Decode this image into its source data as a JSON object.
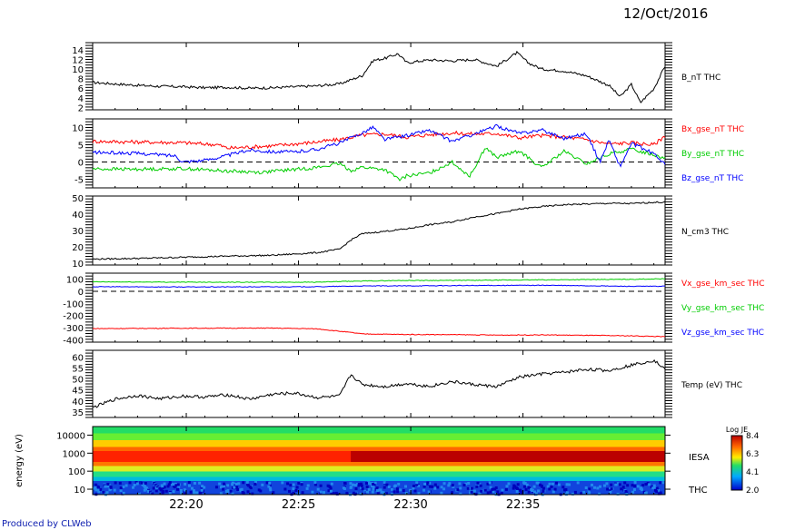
{
  "header": {
    "date": "12/Oct/2016"
  },
  "footer": {
    "produced_by": "Produced by CLWeb"
  },
  "chart_data": [
    {
      "type": "line",
      "panel": "B_nT",
      "label": "B_nT THC",
      "yticks": [
        2,
        4,
        6,
        8,
        10,
        12,
        14
      ],
      "ylim": [
        1.5,
        15.5
      ],
      "xlim": [
        "22:15:50",
        "22:35:45"
      ],
      "series": [
        {
          "name": "B_nT THC",
          "color": "#000000",
          "points": [
            [
              0,
              7.2
            ],
            [
              1,
              6.9
            ],
            [
              2,
              6.6
            ],
            [
              3,
              6.4
            ],
            [
              4,
              6.3
            ],
            [
              5,
              6.1
            ],
            [
              6,
              6.2
            ],
            [
              7,
              6.0
            ],
            [
              8,
              6.1
            ],
            [
              9,
              6.3
            ],
            [
              10,
              6.5
            ],
            [
              11,
              6.9
            ],
            [
              12,
              8.6
            ],
            [
              12.5,
              11.8
            ],
            [
              13,
              12.2
            ],
            [
              13.6,
              13.2
            ],
            [
              14,
              11.3
            ],
            [
              15,
              11.9
            ],
            [
              16,
              11.7
            ],
            [
              17,
              12.0
            ],
            [
              18,
              10.6
            ],
            [
              18.9,
              13.4
            ],
            [
              19.4,
              11.3
            ],
            [
              20,
              10.0
            ],
            [
              21,
              9.6
            ],
            [
              22,
              8.6
            ],
            [
              23,
              6.6
            ],
            [
              23.5,
              4.2
            ],
            [
              24,
              6.8
            ],
            [
              24.4,
              3.0
            ],
            [
              25,
              5.9
            ],
            [
              25.5,
              10.6
            ]
          ]
        }
      ]
    },
    {
      "type": "line",
      "panel": "B_gse_nT",
      "yticks": [
        -5,
        0,
        5,
        10
      ],
      "ylim": [
        -7.5,
        12.5
      ],
      "zero_line": true,
      "series": [
        {
          "name": "Bx_gse_nT THC",
          "color": "#ff0000",
          "points": [
            [
              0,
              6.0
            ],
            [
              2,
              5.8
            ],
            [
              4,
              5.6
            ],
            [
              5.6,
              5.0
            ],
            [
              6,
              4.0
            ],
            [
              8,
              4.7
            ],
            [
              9.5,
              5.5
            ],
            [
              11,
              6.5
            ],
            [
              12,
              7.8
            ],
            [
              13,
              8.1
            ],
            [
              14,
              7.2
            ],
            [
              15,
              7.9
            ],
            [
              16,
              8.4
            ],
            [
              17,
              8.1
            ],
            [
              18,
              8.3
            ],
            [
              19,
              7.0
            ],
            [
              20,
              7.7
            ],
            [
              21,
              7.2
            ],
            [
              22,
              6.5
            ],
            [
              23,
              5.2
            ],
            [
              24,
              5.6
            ],
            [
              25,
              5.0
            ],
            [
              25.5,
              7.6
            ]
          ]
        },
        {
          "name": "By_gse_nT THC",
          "color": "#00cc00",
          "points": [
            [
              0,
              -2.0
            ],
            [
              2,
              -2.1
            ],
            [
              4,
              -1.9
            ],
            [
              6,
              -2.6
            ],
            [
              7.5,
              -3.0
            ],
            [
              8,
              -2.7
            ],
            [
              10,
              -1.6
            ],
            [
              11,
              -0.5
            ],
            [
              11.5,
              -2.5
            ],
            [
              12,
              -1.5
            ],
            [
              13,
              -2.2
            ],
            [
              13.7,
              -5.2
            ],
            [
              14,
              -4.0
            ],
            [
              15,
              -3.2
            ],
            [
              16,
              0.0
            ],
            [
              16.8,
              -4.1
            ],
            [
              17.5,
              4.2
            ],
            [
              18,
              1.3
            ],
            [
              19,
              3.2
            ],
            [
              20,
              -1.7
            ],
            [
              21,
              3.1
            ],
            [
              22,
              -0.6
            ],
            [
              23,
              2.3
            ],
            [
              24,
              3.7
            ],
            [
              25,
              2.1
            ],
            [
              25.5,
              1.2
            ]
          ]
        },
        {
          "name": "Bz_gse_nT THC",
          "color": "#0000ff",
          "points": [
            [
              0,
              2.8
            ],
            [
              2,
              2.5
            ],
            [
              3.7,
              1.8
            ],
            [
              4,
              0.1
            ],
            [
              5,
              0.5
            ],
            [
              6,
              1.9
            ],
            [
              7,
              3.5
            ],
            [
              8,
              3.0
            ],
            [
              9,
              2.9
            ],
            [
              10,
              3.7
            ],
            [
              11,
              5.5
            ],
            [
              12,
              8.4
            ],
            [
              12.5,
              10.2
            ],
            [
              13,
              6.5
            ],
            [
              14,
              7.7
            ],
            [
              15,
              9.2
            ],
            [
              16,
              6.0
            ],
            [
              17,
              8.1
            ],
            [
              18,
              10.4
            ],
            [
              19,
              8.3
            ],
            [
              20,
              9.3
            ],
            [
              21,
              6.9
            ],
            [
              22,
              8.2
            ],
            [
              22.6,
              0.0
            ],
            [
              23,
              6.5
            ],
            [
              23.5,
              -1.4
            ],
            [
              24,
              5.4
            ],
            [
              25,
              2.4
            ],
            [
              25.5,
              -0.6
            ]
          ]
        }
      ],
      "labels": [
        "Bx_gse_nT THC",
        "By_gse_nT THC",
        "Bz_gse_nT THC"
      ]
    },
    {
      "type": "line",
      "panel": "N_cm3",
      "label": "N_cm3 THC",
      "yticks": [
        10,
        20,
        30,
        40,
        50
      ],
      "ylim": [
        9,
        51
      ],
      "series": [
        {
          "name": "N_cm3 THC",
          "color": "#000000",
          "points": [
            [
              0,
              12.6
            ],
            [
              2,
              13.0
            ],
            [
              4,
              13.7
            ],
            [
              6,
              14.4
            ],
            [
              8,
              14.9
            ],
            [
              10,
              16.5
            ],
            [
              11,
              18.6
            ],
            [
              11.5,
              24.2
            ],
            [
              12,
              28.0
            ],
            [
              13,
              29.5
            ],
            [
              14,
              31.0
            ],
            [
              15,
              33.5
            ],
            [
              16,
              35.2
            ],
            [
              17,
              38.2
            ],
            [
              18,
              40.3
            ],
            [
              19,
              43.0
            ],
            [
              20,
              44.5
            ],
            [
              21,
              45.7
            ],
            [
              22,
              46.1
            ],
            [
              23,
              46.6
            ],
            [
              24,
              46.4
            ],
            [
              25,
              47.2
            ],
            [
              25.5,
              47.2
            ]
          ]
        }
      ]
    },
    {
      "type": "line",
      "panel": "V_gse_km_sec",
      "yticks": [
        -400,
        -300,
        -200,
        -100,
        0,
        100
      ],
      "ylim": [
        -420,
        150
      ],
      "zero_line": true,
      "series": [
        {
          "name": "Vx_gse_km_sec THC",
          "color": "#ff0000",
          "points": [
            [
              0,
              -308
            ],
            [
              4,
              -305
            ],
            [
              8,
              -304
            ],
            [
              10,
              -310
            ],
            [
              11.5,
              -340
            ],
            [
              12,
              -352
            ],
            [
              14,
              -357
            ],
            [
              16,
              -358
            ],
            [
              18,
              -362
            ],
            [
              20,
              -360
            ],
            [
              22,
              -364
            ],
            [
              24,
              -368
            ],
            [
              25.5,
              -375
            ]
          ]
        },
        {
          "name": "Vy_gse_km_sec THC",
          "color": "#00cc00",
          "points": [
            [
              0,
              78
            ],
            [
              4,
              76
            ],
            [
              8,
              75
            ],
            [
              10,
              76
            ],
            [
              12,
              85
            ],
            [
              14,
              90
            ],
            [
              16,
              90
            ],
            [
              18,
              92
            ],
            [
              20,
              95
            ],
            [
              22,
              97
            ],
            [
              24,
              99
            ],
            [
              25.5,
              104
            ]
          ]
        },
        {
          "name": "Vz_gse_km_sec THC",
          "color": "#0000ff",
          "points": [
            [
              0,
              38
            ],
            [
              4,
              36
            ],
            [
              8,
              37
            ],
            [
              10,
              38
            ],
            [
              12,
              44
            ],
            [
              14,
              45
            ],
            [
              16,
              47
            ],
            [
              18,
              49
            ],
            [
              20,
              50
            ],
            [
              22,
              46
            ],
            [
              24,
              41
            ],
            [
              25.5,
              42
            ]
          ]
        }
      ],
      "labels": [
        "Vx_gse_km_sec THC",
        "Vy_gse_km_sec THC",
        "Vz_gse_km_sec THC"
      ]
    },
    {
      "type": "line",
      "panel": "Temp",
      "label": "Temp (eV) THC",
      "yticks": [
        35,
        40,
        45,
        50,
        55,
        60
      ],
      "ylim": [
        32.5,
        63
      ],
      "series": [
        {
          "name": "Temp (eV) THC",
          "color": "#000000",
          "points": [
            [
              0,
              37
            ],
            [
              1,
              40.8
            ],
            [
              2,
              42.5
            ],
            [
              3,
              41.0
            ],
            [
              4,
              42.2
            ],
            [
              5,
              41.8
            ],
            [
              6,
              42.8
            ],
            [
              7,
              40.8
            ],
            [
              8,
              43.0
            ],
            [
              9,
              43.6
            ],
            [
              10,
              41.5
            ],
            [
              11,
              42.2
            ],
            [
              11.5,
              52.0
            ],
            [
              12,
              47.5
            ],
            [
              13,
              46.5
            ],
            [
              14,
              47.9
            ],
            [
              15,
              46.6
            ],
            [
              16,
              48.8
            ],
            [
              17,
              47.4
            ],
            [
              18,
              46.5
            ],
            [
              19,
              50.8
            ],
            [
              20,
              52.2
            ],
            [
              21,
              53.0
            ],
            [
              22,
              54.4
            ],
            [
              23,
              53.8
            ],
            [
              24,
              56.3
            ],
            [
              25,
              58.5
            ],
            [
              25.5,
              54.5
            ]
          ]
        }
      ]
    },
    {
      "type": "heatmap",
      "panel": "IESA",
      "ylabel": "energy (eV)",
      "yticks": [
        "10",
        "100",
        "1000",
        "10000"
      ],
      "ylim": [
        5,
        30000
      ],
      "label_top": "IESA",
      "label_bottom": "THC",
      "colorbar": {
        "title": "Log JE",
        "ticks": [
          "8.4",
          "6.3",
          "4.1",
          "2.0"
        ],
        "range": [
          2.0,
          8.4
        ]
      }
    }
  ],
  "xaxis": {
    "tick_labels": [
      "22:20",
      "22:25",
      "22:30",
      "22:35"
    ],
    "tick_minutes": [
      4.17,
      9.17,
      14.17,
      19.17
    ]
  }
}
